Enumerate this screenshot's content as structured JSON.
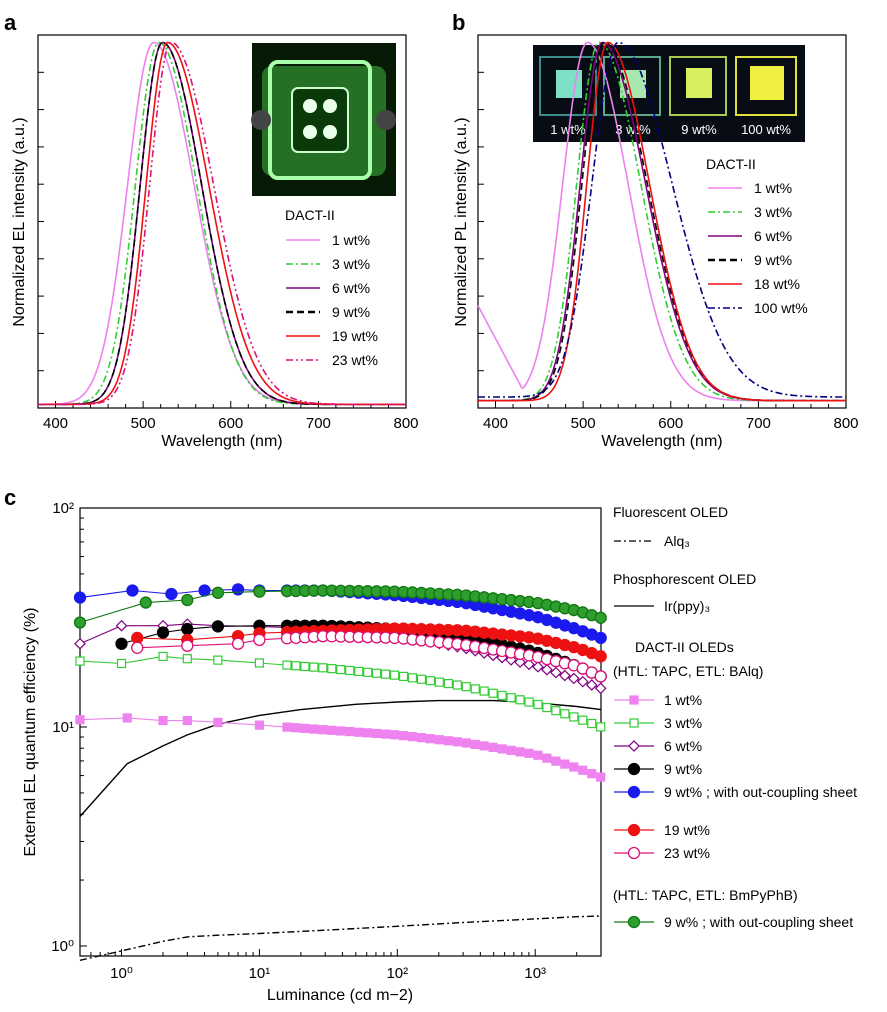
{
  "panel_labels": {
    "a": "a",
    "b": "b",
    "c": "c"
  },
  "chart_data": [
    {
      "panel": "a",
      "type": "line",
      "xlabel": "Wavelength (nm)",
      "ylabel": "Normalized EL intensity (a.u.)",
      "xlim": [
        380,
        800
      ],
      "ylim": [
        0,
        1.0
      ],
      "xticks": [
        400,
        500,
        600,
        700,
        800
      ],
      "legend_title": "DACT-II",
      "legend_location": "right",
      "inset": "photo of green-emitting OLED device",
      "series": [
        {
          "name": "1 wt%",
          "color": "#ee82ee",
          "dash": "solid",
          "peak": 512,
          "wl": 40,
          "wr": 62,
          "base": 0.01
        },
        {
          "name": "3 wt%",
          "color": "#33cc33",
          "dash": "dashdot",
          "peak": 518,
          "wl": 36,
          "wr": 58,
          "base": 0.01
        },
        {
          "name": "6 wt%",
          "color": "#800080",
          "dash": "solid",
          "peak": 522,
          "wl": 34,
          "wr": 60,
          "base": 0.01
        },
        {
          "name": "9 wt%",
          "color": "#000000",
          "dash": "dashed",
          "peak": 522,
          "wl": 34,
          "wr": 60,
          "base": 0.01
        },
        {
          "name": "19 wt%",
          "color": "#ee1111",
          "dash": "solid",
          "peak": 528,
          "wl": 33,
          "wr": 63,
          "base": 0.01
        },
        {
          "name": "23 wt%",
          "color": "#dd1177",
          "dash": "dashdotdot",
          "peak": 532,
          "wl": 33,
          "wr": 65,
          "base": 0.01
        }
      ]
    },
    {
      "panel": "b",
      "type": "line",
      "xlabel": "Wavelength (nm)",
      "ylabel": "Normalized PL intensity (a.u.)",
      "xlim": [
        380,
        800
      ],
      "ylim": [
        0,
        1.0
      ],
      "xticks": [
        400,
        500,
        600,
        700,
        800
      ],
      "legend_title": "DACT-II",
      "legend_location": "right",
      "inset_labels": [
        "1 wt%",
        "3 wt%",
        "9 wt%",
        "100 wt%"
      ],
      "inset_square_colors": [
        "#7fe0c8",
        "#a8e8b0",
        "#d8f060",
        "#f0f040"
      ],
      "series": [
        {
          "name": "1 wt%",
          "color": "#ee82ee",
          "dash": "solid",
          "peak": 505,
          "wl": 38,
          "wr": 62,
          "base": 0.02
        },
        {
          "name": "3 wt%",
          "color": "#33cc33",
          "dash": "dashdot",
          "peak": 518,
          "wl": 34,
          "wr": 64,
          "base": 0.02
        },
        {
          "name": "6 wt%",
          "color": "#800080",
          "dash": "solid",
          "peak": 522,
          "wl": 34,
          "wr": 66,
          "base": 0.02
        },
        {
          "name": "9 wt%",
          "color": "#000000",
          "dash": "dashed",
          "peak": 524,
          "wl": 34,
          "wr": 66,
          "base": 0.02
        },
        {
          "name": "18 wt%",
          "color": "#ee1111",
          "dash": "solid",
          "peak": 528,
          "wl": 32,
          "wr": 64,
          "base": 0.02
        },
        {
          "name": "100 wt%",
          "color": "#000080",
          "dash": "dashdot",
          "peak": 540,
          "wl": 40,
          "wr": 82,
          "base": 0.03
        }
      ]
    },
    {
      "panel": "c",
      "type": "scatter",
      "xlabel": "Luminance (cd m−2)",
      "ylabel": "External EL quantum efficiency (%)",
      "xscale": "log",
      "yscale": "log",
      "xlim": [
        0.5,
        3000
      ],
      "ylim": [
        0.9,
        100
      ],
      "x_tick_labels": [
        "10⁰",
        "10¹",
        "10²",
        "10³"
      ],
      "y_tick_labels": [
        "10⁰",
        "10¹",
        "10²"
      ],
      "legend_groups": [
        {
          "heading": "Fluorescent OLED",
          "heading2": ""
        },
        {
          "heading": "Phosphorescent OLED",
          "heading2": ""
        },
        {
          "heading": "DACT-II OLEDs",
          "heading2": "(HTL: TAPC, ETL: BAlq)"
        },
        {
          "heading": "(HTL: TAPC, ETL: BmPyPhB)",
          "heading2": ""
        }
      ],
      "series": [
        {
          "name": "Alq₃",
          "color": "#000000",
          "dash": "dashdot",
          "marker": "none",
          "x": [
            0.5,
            1,
            2,
            3,
            5,
            10,
            30,
            100,
            300,
            1000,
            2000,
            3000
          ],
          "y": [
            0.86,
            0.95,
            1.05,
            1.1,
            1.12,
            1.14,
            1.18,
            1.23,
            1.28,
            1.33,
            1.36,
            1.37
          ]
        },
        {
          "name": "Ir(ppy)₃",
          "color": "#000000",
          "dash": "solid",
          "marker": "none",
          "x": [
            0.5,
            1.1,
            2,
            3,
            5,
            10,
            20,
            50,
            100,
            200,
            500,
            1000,
            2000,
            3000
          ],
          "y": [
            3.9,
            6.8,
            8.2,
            9.2,
            10.3,
            11.3,
            12.0,
            12.7,
            13.0,
            13.2,
            13.2,
            12.9,
            12.4,
            12.0
          ]
        },
        {
          "name": "1 wt%",
          "color": "#ee82ee",
          "marker": "square",
          "fill": "#ee82ee",
          "x": [
            0.5,
            1.1,
            2,
            3,
            5,
            10,
            30,
            100,
            300,
            1000,
            2000,
            3000
          ],
          "y": [
            10.8,
            11.0,
            10.7,
            10.7,
            10.5,
            10.2,
            9.7,
            9.2,
            8.5,
            7.5,
            6.5,
            5.9
          ]
        },
        {
          "name": "3 wt%",
          "color": "#33cc33",
          "marker": "square",
          "fill": "#ffffff",
          "x": [
            0.5,
            1,
            2,
            3,
            5,
            10,
            30,
            100,
            300,
            1000,
            2000,
            3000
          ],
          "y": [
            20.0,
            19.5,
            21.0,
            20.5,
            20.2,
            19.6,
            18.6,
            17.2,
            15.4,
            12.8,
            11.0,
            10.0
          ]
        },
        {
          "name": "6 wt%",
          "color": "#800080",
          "marker": "diamond",
          "fill": "#ffffff",
          "x": [
            0.5,
            1,
            2,
            3,
            5,
            10,
            30,
            100,
            300,
            1000,
            2000,
            3000
          ],
          "y": [
            24.0,
            29.0,
            29.0,
            29.5,
            29.0,
            28.8,
            28.0,
            26.0,
            23.0,
            19.0,
            16.5,
            15.0
          ]
        },
        {
          "name": "9 wt%",
          "color": "#000000",
          "marker": "circle",
          "fill": "#000000",
          "x": [
            1,
            2,
            3,
            5,
            10,
            30,
            100,
            300,
            1000,
            2000,
            3000
          ],
          "y": [
            24.0,
            27.0,
            28.0,
            28.8,
            29.0,
            29.0,
            28.0,
            26.0,
            22.0,
            19.0,
            17.0
          ]
        },
        {
          "name": "9 wt% ; with out-coupling sheet",
          "color": "#1a1aee",
          "marker": "circle",
          "fill": "#1a1aee",
          "x": [
            0.5,
            1.2,
            2.3,
            4,
            7,
            10,
            30,
            100,
            300,
            1000,
            2000,
            3000
          ],
          "y": [
            39.0,
            42.0,
            40.5,
            42.0,
            42.5,
            42.0,
            42.0,
            40.0,
            37.0,
            32.0,
            28.0,
            25.5
          ]
        },
        {
          "name": "19 wt%",
          "color": "#ee1111",
          "marker": "circle",
          "fill": "#ee1111",
          "x": [
            1.3,
            3,
            7,
            10,
            30,
            100,
            300,
            1000,
            2000,
            3000
          ],
          "y": [
            25.5,
            25.0,
            26.0,
            26.8,
            27.5,
            28.2,
            27.6,
            25.5,
            23.0,
            21.0
          ]
        },
        {
          "name": "23 wt%",
          "color": "#dd1177",
          "marker": "circle",
          "fill": "#ffffff",
          "x": [
            1.3,
            3,
            7,
            10,
            30,
            100,
            300,
            1000,
            2000,
            3000
          ],
          "y": [
            23.0,
            23.5,
            24.0,
            25.0,
            26.0,
            25.5,
            23.8,
            21.0,
            19.0,
            17.0
          ]
        },
        {
          "name": "9 w% ; with out-coupling sheet",
          "color": "#117711",
          "marker": "circle",
          "fill": "#2e9e2e",
          "x": [
            0.5,
            1.5,
            3,
            5,
            10,
            30,
            100,
            300,
            1000,
            2000,
            3000
          ],
          "y": [
            30.0,
            37.0,
            38.0,
            41.0,
            41.5,
            42.0,
            41.5,
            40.0,
            37.0,
            34.0,
            31.5
          ]
        }
      ]
    }
  ]
}
